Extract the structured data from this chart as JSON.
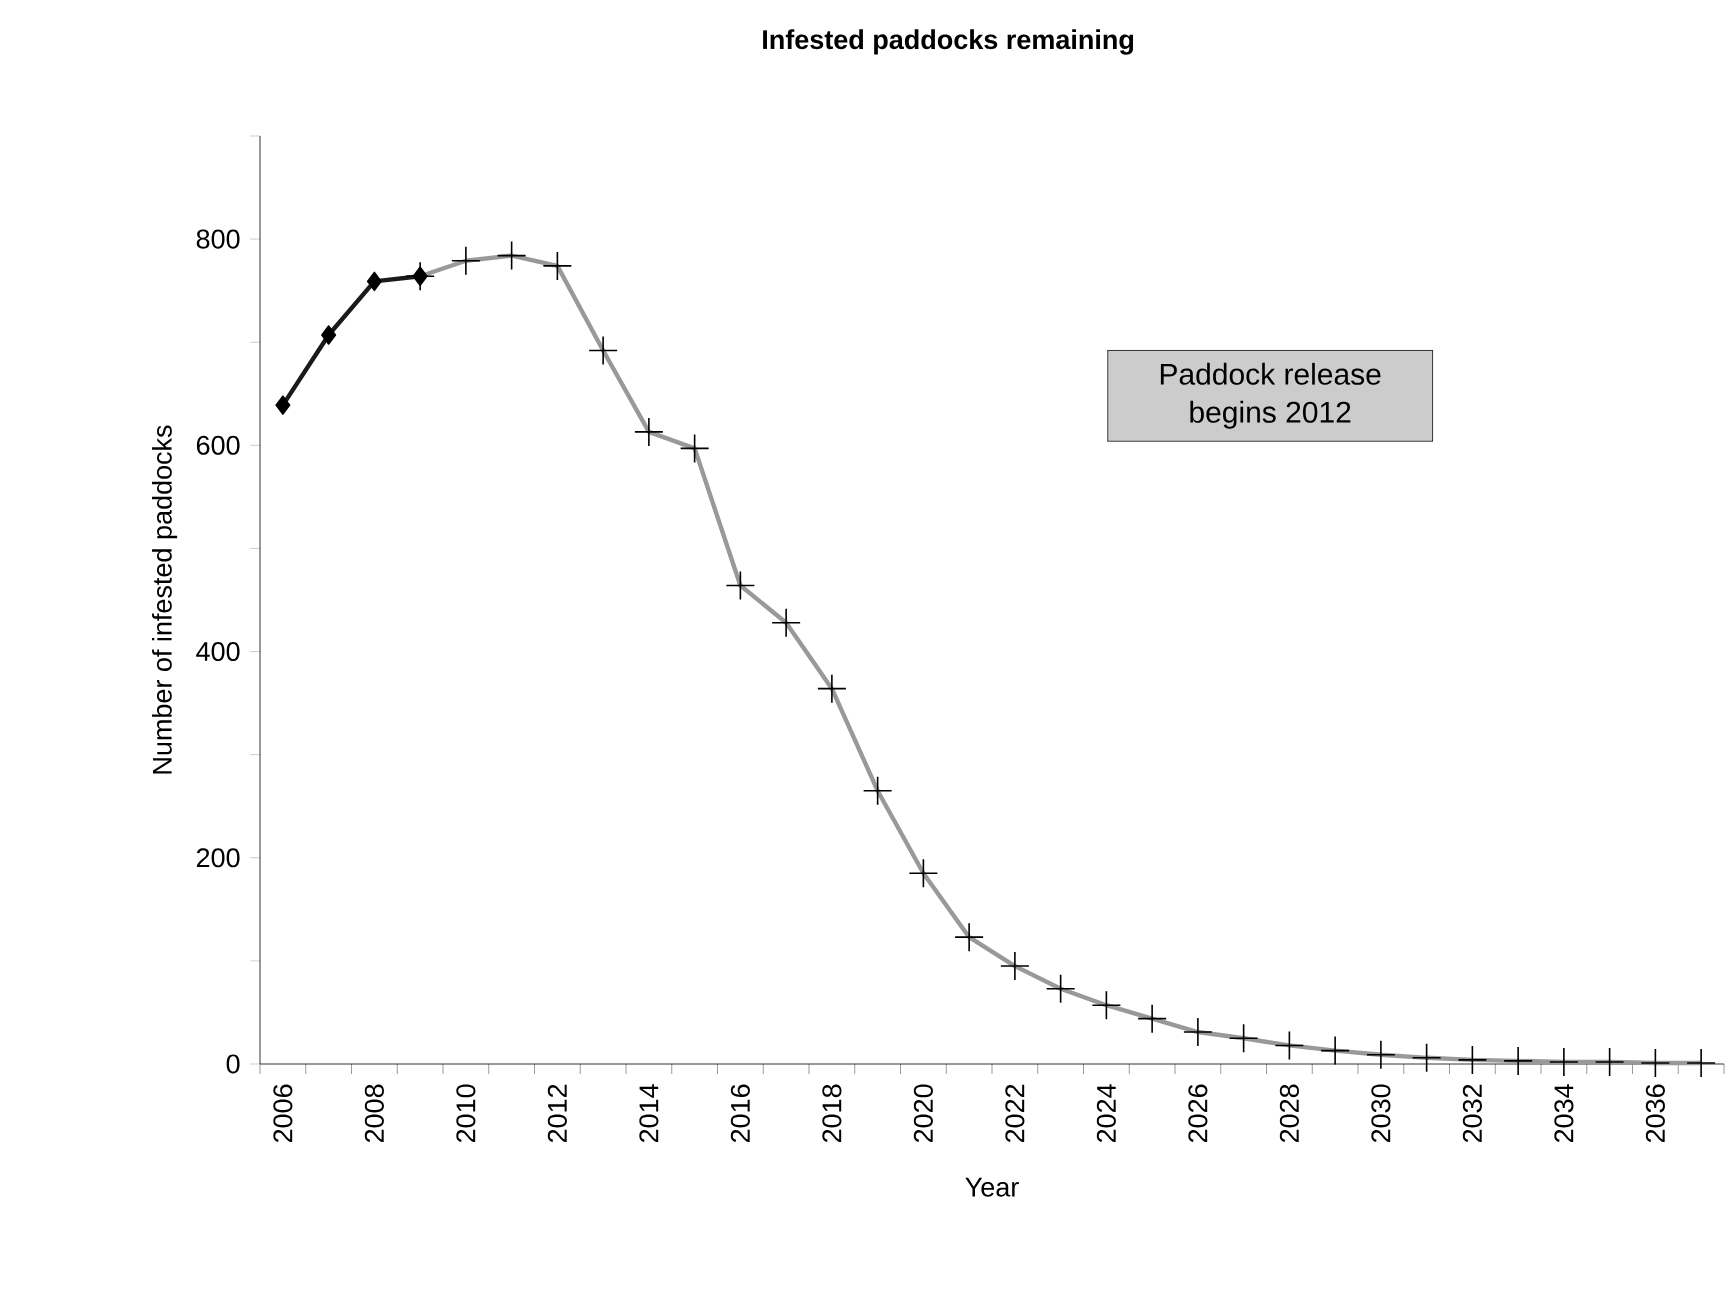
{
  "chart_data": {
    "type": "line",
    "title": "Infested paddocks remaining",
    "xlabel": "Year",
    "ylabel": "Number of infested paddocks",
    "categories": [
      "2006",
      null,
      "2008",
      null,
      "2010",
      null,
      "2012",
      null,
      "2014",
      null,
      "2016",
      null,
      "2018",
      null,
      "2020",
      null,
      "2022",
      null,
      "2024",
      null,
      "2026",
      null,
      "2028",
      null,
      "2030",
      null,
      "2032",
      null,
      "2034",
      null,
      "2036",
      null
    ],
    "series": [
      {
        "color": "#1a1a1a",
        "marker": "diamond",
        "values": [
          639,
          707,
          759,
          764,
          null,
          null,
          null,
          null,
          null,
          null,
          null,
          null,
          null,
          null,
          null,
          null,
          null,
          null,
          null,
          null,
          null,
          null,
          null,
          null,
          null,
          null,
          null,
          null,
          null,
          null,
          null,
          null
        ]
      },
      {
        "color": "#999999",
        "marker": "cross",
        "values": [
          null,
          null,
          null,
          764,
          779,
          784,
          774,
          692,
          613,
          597,
          464,
          428,
          364,
          265,
          185,
          123,
          95,
          73,
          57,
          44,
          31,
          25,
          18,
          13,
          9,
          6,
          4,
          3,
          2,
          2,
          1,
          1
        ]
      }
    ],
    "ylim": [
      0,
      900
    ],
    "yticks": [
      0,
      {
        "value": 100,
        "label": null
      },
      200,
      {
        "value": 300,
        "label": null
      },
      400,
      {
        "value": 500,
        "label": null
      },
      600,
      {
        "value": 700,
        "label": null
      },
      800,
      {
        "value": 900,
        "label": null
      }
    ],
    "annotations": [
      "Paddock release begins 2012"
    ],
    "line_style": "solid"
  }
}
